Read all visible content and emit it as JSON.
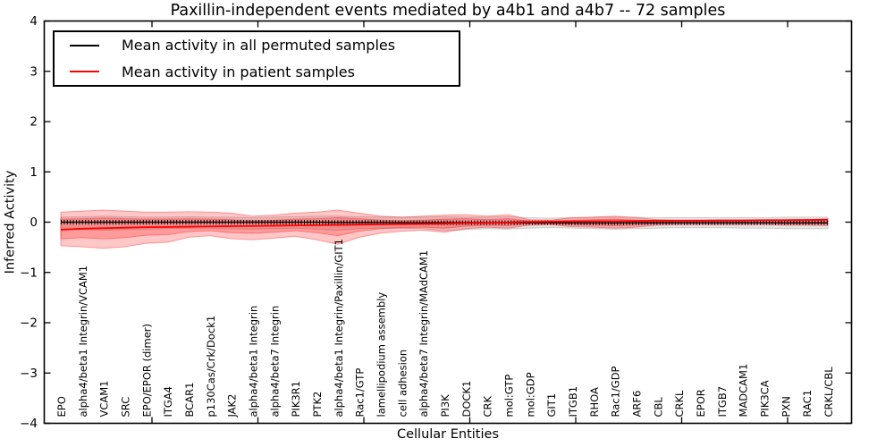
{
  "legend": {
    "entries": [
      {
        "label": "Mean activity in all permuted samples",
        "color": "#000000"
      },
      {
        "label": "Mean activity in patient samples",
        "color": "#ff0000"
      }
    ]
  },
  "chart_data": {
    "type": "line",
    "title": "Paxillin-independent events mediated by a4b1 and a4b7 -- 72 samples",
    "xlabel": "Cellular Entities",
    "ylabel": "Inferred Activity",
    "ylim": [
      -4,
      4
    ],
    "ytick_labels": [
      "4",
      "3",
      "2",
      "1",
      "0",
      "−1",
      "−2",
      "−3",
      "−4"
    ],
    "grid": false,
    "legend_position": "upper left",
    "categories": [
      "EPO",
      "alpha4/beta1 Integrin/VCAM1",
      "VCAM1",
      "SRC",
      "EPO/EPOR (dimer)",
      "ITGA4",
      "BCAR1",
      "p130Cas/Crk/Dock1",
      "JAK2",
      "alpha4/beta1 Integrin",
      "alpha4/beta7 Integrin",
      "PIK3R1",
      "PTK2",
      "alpha4/beta1 Integrin/Paxillin/GIT1",
      "Rac1/GTP",
      "lamellipodium assembly",
      "cell adhesion",
      "alpha4/beta7 Integrin/MAdCAM1",
      "PI3K",
      "DOCK1",
      "CRK",
      "mol:GTP",
      "mol:GDP",
      "GIT1",
      "ITGB1",
      "RHOA",
      "Rac1/GDP",
      "ARF6",
      "CBL",
      "CRKL",
      "EPOR",
      "ITGB7",
      "MADCAM1",
      "PIK3CA",
      "PXN",
      "RAC1",
      "CRKL/CBL"
    ],
    "series": [
      {
        "name": "Mean activity in all permuted samples",
        "color": "#000000",
        "style": "solid-with-tick-markers",
        "values": [
          0,
          0,
          0,
          0,
          0,
          0,
          0,
          0,
          0,
          0,
          0,
          0,
          0,
          -0.005,
          -0.005,
          -0.005,
          -0.01,
          -0.01,
          -0.01,
          -0.01,
          -0.01,
          -0.01,
          -0.012,
          -0.012,
          -0.015,
          -0.015,
          -0.015,
          -0.012,
          -0.012,
          -0.012,
          -0.012,
          -0.012,
          -0.012,
          -0.012,
          -0.012,
          -0.012,
          -0.012
        ]
      },
      {
        "name": "Mean activity in patient samples",
        "color": "#ff0000",
        "style": "solid",
        "values": [
          -0.15,
          -0.13,
          -0.12,
          -0.11,
          -0.1,
          -0.095,
          -0.09,
          -0.085,
          -0.08,
          -0.075,
          -0.07,
          -0.065,
          -0.06,
          -0.055,
          -0.05,
          -0.045,
          -0.04,
          -0.035,
          -0.03,
          -0.02,
          -0.015,
          -0.005,
          0.005,
          0.01,
          0.015,
          0.02,
          0.02,
          0.025,
          0.03,
          0.03,
          0.03,
          0.035,
          0.035,
          0.04,
          0.04,
          0.045,
          0.05
        ]
      }
    ],
    "bands": [
      {
        "name": "permuted samples range",
        "color": "#000000",
        "opacity": 0.1,
        "upper": [
          0.1,
          0.11,
          0.12,
          0.11,
          0.1,
          0.1,
          0.11,
          0.1,
          0.1,
          0.09,
          0.1,
          0.11,
          0.12,
          0.12,
          0.11,
          0.1,
          0.1,
          0.1,
          0.11,
          0.1,
          0.1,
          0.11,
          0.09,
          0.08,
          0.09,
          0.1,
          0.1,
          0.1,
          0.09,
          0.09,
          0.09,
          0.09,
          0.09,
          0.09,
          0.1,
          0.1,
          0.1
        ],
        "lower": [
          -0.14,
          -0.15,
          -0.16,
          -0.15,
          -0.14,
          -0.13,
          -0.12,
          -0.12,
          -0.13,
          -0.14,
          -0.13,
          -0.12,
          -0.14,
          -0.16,
          -0.13,
          -0.12,
          -0.12,
          -0.13,
          -0.17,
          -0.15,
          -0.13,
          -0.14,
          -0.12,
          -0.11,
          -0.12,
          -0.13,
          -0.14,
          -0.13,
          -0.12,
          -0.11,
          -0.11,
          -0.11,
          -0.12,
          -0.12,
          -0.13,
          -0.13,
          -0.13
        ]
      },
      {
        "name": "patient samples range (outer)",
        "color": "#ff0000",
        "opacity": 0.22,
        "upper": [
          0.2,
          0.22,
          0.24,
          0.22,
          0.2,
          0.2,
          0.21,
          0.2,
          0.18,
          0.12,
          0.14,
          0.18,
          0.2,
          0.24,
          0.18,
          0.12,
          0.1,
          0.12,
          0.14,
          0.15,
          0.12,
          0.15,
          0.05,
          0.04,
          0.09,
          0.1,
          0.12,
          0.09,
          0.05,
          0.04,
          0.04,
          0.04,
          0.04,
          0.04,
          0.05,
          0.05,
          0.06
        ],
        "lower": [
          -0.47,
          -0.49,
          -0.52,
          -0.49,
          -0.42,
          -0.4,
          -0.3,
          -0.27,
          -0.33,
          -0.35,
          -0.32,
          -0.28,
          -0.35,
          -0.44,
          -0.3,
          -0.22,
          -0.18,
          -0.16,
          -0.2,
          -0.13,
          -0.1,
          -0.12,
          -0.06,
          -0.05,
          -0.09,
          -0.1,
          -0.12,
          -0.1,
          -0.06,
          -0.05,
          -0.05,
          -0.05,
          -0.05,
          -0.05,
          -0.06,
          -0.06,
          -0.07
        ]
      },
      {
        "name": "patient samples range (inner)",
        "color": "#ff0000",
        "opacity": 0.22,
        "upper": [
          0.06,
          0.07,
          0.08,
          0.07,
          0.06,
          0.06,
          0.07,
          0.06,
          0.05,
          0.03,
          0.04,
          0.06,
          0.07,
          0.09,
          0.07,
          0.04,
          0.03,
          0.04,
          0.06,
          0.07,
          0.05,
          0.07,
          0.02,
          0.02,
          0.04,
          0.05,
          0.06,
          0.04,
          0.02,
          0.02,
          0.02,
          0.02,
          0.02,
          0.03,
          0.03,
          0.03,
          0.04
        ],
        "lower": [
          -0.33,
          -0.31,
          -0.33,
          -0.31,
          -0.26,
          -0.25,
          -0.19,
          -0.17,
          -0.21,
          -0.22,
          -0.2,
          -0.17,
          -0.21,
          -0.27,
          -0.18,
          -0.13,
          -0.11,
          -0.1,
          -0.12,
          -0.08,
          -0.06,
          -0.07,
          -0.03,
          -0.03,
          -0.05,
          -0.06,
          -0.07,
          -0.06,
          -0.03,
          -0.02,
          -0.02,
          -0.02,
          -0.02,
          -0.02,
          -0.03,
          -0.03,
          -0.03
        ]
      }
    ]
  }
}
